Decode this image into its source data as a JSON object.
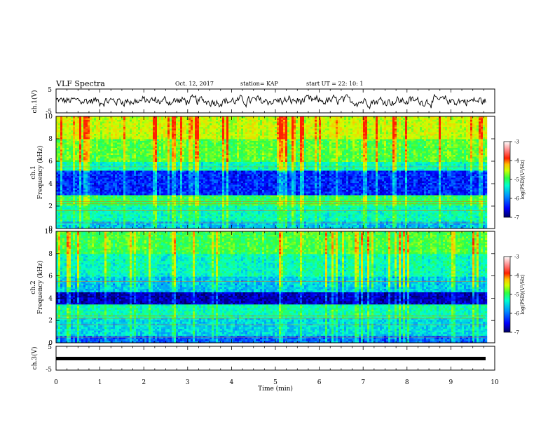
{
  "header": {
    "title": "VLF Spectra",
    "date": "Oct. 12, 2017",
    "station": "station= KAP",
    "start": "start UT =  22: 10: 1"
  },
  "chart_data": [
    {
      "type": "line",
      "ylabel": "ch.1(V)",
      "ylim": [
        -5,
        5
      ],
      "yticks": [
        "5",
        "-5"
      ],
      "xlim": [
        0,
        10
      ],
      "note": "noisy waveform approx. -2 to 2 V"
    },
    {
      "type": "heatmap",
      "ylabel": "ch.1\nFrequency (kHz)",
      "ylim": [
        0,
        10
      ],
      "yticks": [
        "0",
        "2",
        "4",
        "6",
        "8",
        "10"
      ],
      "xlim": [
        0,
        9.8
      ],
      "colorbar": {
        "label": "log(PSD)(V²/Hz)",
        "range": [
          -7,
          -3
        ],
        "ticks": [
          "-3",
          "-4",
          "-5",
          "-6",
          "-7"
        ]
      }
    },
    {
      "type": "heatmap",
      "ylabel": "ch.2\nFrequency (kHz)",
      "ylim": [
        0,
        10
      ],
      "yticks": [
        "0",
        "2",
        "4",
        "6",
        "8",
        "10"
      ],
      "xlim": [
        0,
        9.8
      ],
      "colorbar": {
        "label": "log(PSD)(V²/Hz)",
        "range": [
          -7,
          -3
        ],
        "ticks": [
          "-3",
          "-4",
          "-5",
          "-6",
          "-7"
        ]
      }
    },
    {
      "type": "line",
      "ylabel": "ch.3(V)",
      "ylim": [
        -5,
        5
      ],
      "yticks": [
        "5",
        "-5"
      ],
      "values_constant": -1,
      "xlim": [
        0,
        10
      ],
      "xlabel": "Time (min)",
      "xticks": [
        "0",
        "1",
        "2",
        "3",
        "4",
        "5",
        "6",
        "7",
        "8",
        "9",
        "10"
      ]
    }
  ],
  "colors": {
    "axis": "#000000",
    "cmap": [
      "#000080",
      "#0040ff",
      "#00c0ff",
      "#00ffa0",
      "#80ff40",
      "#ffff00",
      "#ff8000",
      "#ff0000",
      "#ff9090",
      "#ffd0d0",
      "#ffffff"
    ]
  }
}
